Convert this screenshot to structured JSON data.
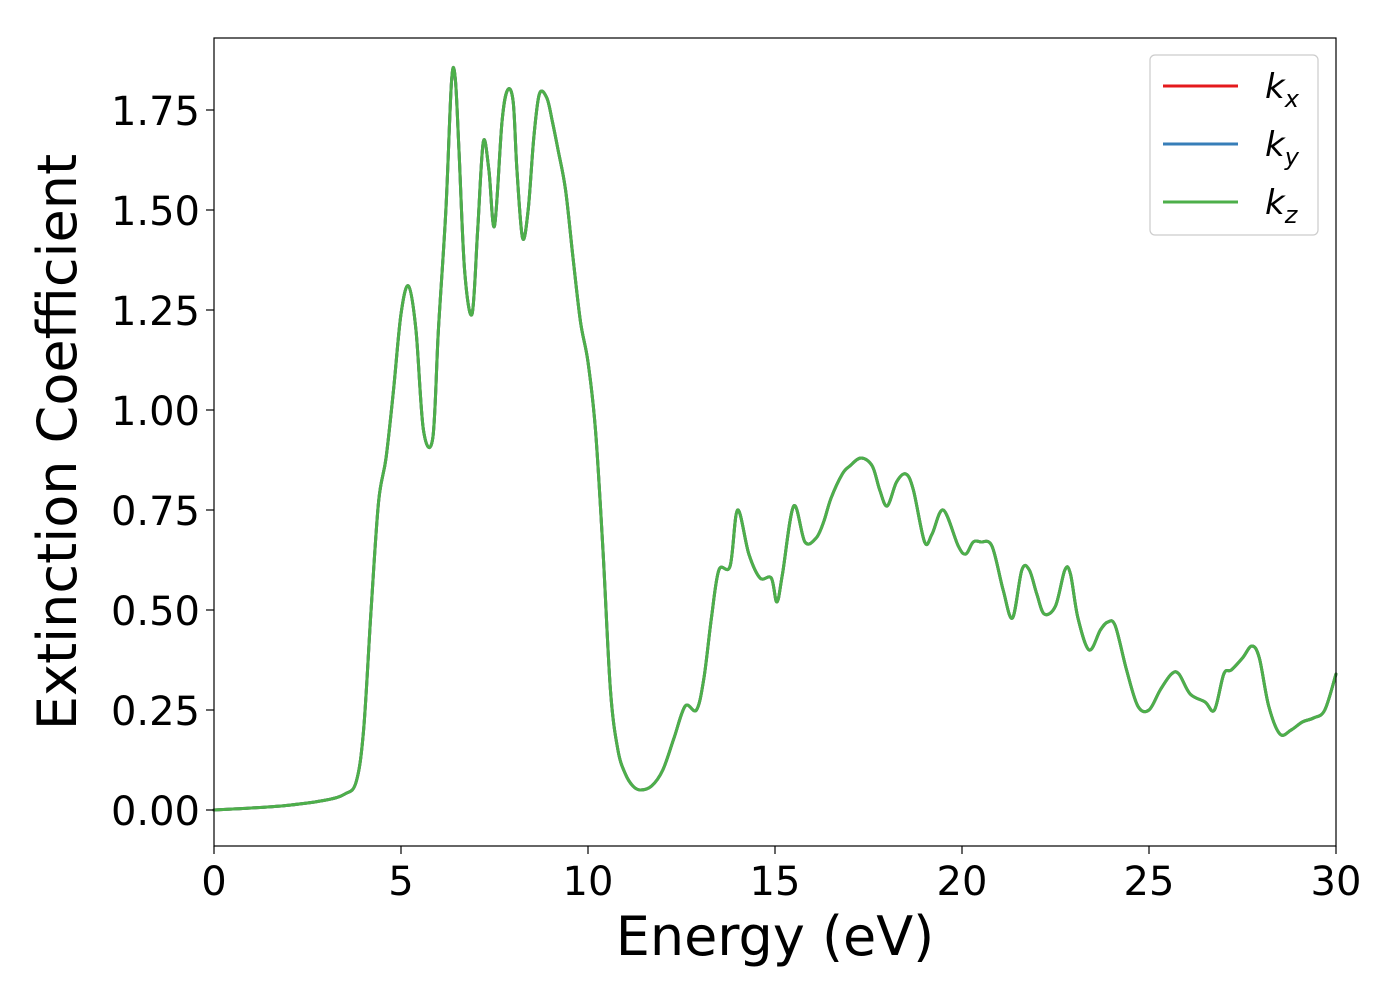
{
  "chart_data": {
    "type": "line",
    "xlabel": "Energy (eV)",
    "ylabel": "Extinction Coefficient",
    "xlim": [
      0,
      30
    ],
    "ylim": [
      -0.09,
      1.93
    ],
    "xticks": [
      0,
      5,
      10,
      15,
      20,
      25,
      30
    ],
    "xtick_labels": [
      "0",
      "5",
      "10",
      "15",
      "20",
      "25",
      "30"
    ],
    "yticks": [
      0,
      0.25,
      0.5,
      0.75,
      1.0,
      1.25,
      1.5,
      1.75
    ],
    "ytick_labels": [
      "0.00",
      "0.25",
      "0.50",
      "0.75",
      "1.00",
      "1.25",
      "1.50",
      "1.75"
    ],
    "grid": false,
    "legend_position": "top-right",
    "x": [
      0,
      1,
      2,
      3,
      3.5,
      3.8,
      4.0,
      4.2,
      4.4,
      4.6,
      4.8,
      5.0,
      5.2,
      5.4,
      5.6,
      5.85,
      6.0,
      6.2,
      6.35,
      6.45,
      6.55,
      6.7,
      6.9,
      7.05,
      7.2,
      7.35,
      7.5,
      7.7,
      7.85,
      8.0,
      8.1,
      8.25,
      8.4,
      8.55,
      8.7,
      8.9,
      9.05,
      9.2,
      9.4,
      9.6,
      9.8,
      10.0,
      10.2,
      10.4,
      10.6,
      10.8,
      11.0,
      11.2,
      11.4,
      11.7,
      12.0,
      12.3,
      12.6,
      12.9,
      13.1,
      13.3,
      13.5,
      13.8,
      14.0,
      14.3,
      14.6,
      14.9,
      15.05,
      15.2,
      15.5,
      15.8,
      16.1,
      16.3,
      16.5,
      16.8,
      17.0,
      17.3,
      17.6,
      17.8,
      18.0,
      18.25,
      18.5,
      18.7,
      19.0,
      19.2,
      19.5,
      19.9,
      20.1,
      20.3,
      20.5,
      20.8,
      21.1,
      21.35,
      21.6,
      21.8,
      22.0,
      22.2,
      22.5,
      22.75,
      22.9,
      23.1,
      23.4,
      23.7,
      23.9,
      24.1,
      24.4,
      24.7,
      25.0,
      25.3,
      25.6,
      25.8,
      26.1,
      26.5,
      26.75,
      27.0,
      27.2,
      27.5,
      27.75,
      27.95,
      28.2,
      28.5,
      28.8,
      29.1,
      29.4,
      29.7,
      30.0
    ],
    "series": [
      {
        "name": "k_x",
        "color": "#e41a1c",
        "values": [
          0.0,
          0.005,
          0.012,
          0.025,
          0.04,
          0.07,
          0.2,
          0.5,
          0.77,
          0.88,
          1.05,
          1.24,
          1.31,
          1.2,
          0.95,
          0.93,
          1.2,
          1.5,
          1.82,
          1.83,
          1.65,
          1.35,
          1.24,
          1.45,
          1.67,
          1.6,
          1.46,
          1.72,
          1.8,
          1.77,
          1.6,
          1.43,
          1.5,
          1.68,
          1.79,
          1.78,
          1.72,
          1.65,
          1.55,
          1.38,
          1.22,
          1.12,
          0.95,
          0.65,
          0.3,
          0.15,
          0.09,
          0.06,
          0.05,
          0.06,
          0.1,
          0.18,
          0.26,
          0.25,
          0.33,
          0.48,
          0.6,
          0.61,
          0.75,
          0.64,
          0.58,
          0.58,
          0.52,
          0.59,
          0.76,
          0.67,
          0.68,
          0.72,
          0.78,
          0.84,
          0.86,
          0.88,
          0.86,
          0.8,
          0.76,
          0.82,
          0.84,
          0.8,
          0.67,
          0.69,
          0.75,
          0.66,
          0.64,
          0.67,
          0.67,
          0.66,
          0.55,
          0.48,
          0.6,
          0.6,
          0.54,
          0.49,
          0.51,
          0.6,
          0.59,
          0.48,
          0.4,
          0.45,
          0.47,
          0.46,
          0.35,
          0.26,
          0.25,
          0.3,
          0.34,
          0.34,
          0.29,
          0.27,
          0.25,
          0.34,
          0.35,
          0.38,
          0.41,
          0.38,
          0.26,
          0.19,
          0.2,
          0.22,
          0.23,
          0.25,
          0.34
        ]
      },
      {
        "name": "k_y",
        "color": "#377eb8",
        "values": [
          0.0,
          0.005,
          0.012,
          0.025,
          0.04,
          0.07,
          0.2,
          0.5,
          0.77,
          0.88,
          1.05,
          1.24,
          1.31,
          1.2,
          0.95,
          0.93,
          1.2,
          1.5,
          1.82,
          1.83,
          1.65,
          1.35,
          1.24,
          1.45,
          1.67,
          1.6,
          1.46,
          1.72,
          1.8,
          1.77,
          1.6,
          1.43,
          1.5,
          1.68,
          1.79,
          1.78,
          1.72,
          1.65,
          1.55,
          1.38,
          1.22,
          1.12,
          0.95,
          0.65,
          0.3,
          0.15,
          0.09,
          0.06,
          0.05,
          0.06,
          0.1,
          0.18,
          0.26,
          0.25,
          0.33,
          0.48,
          0.6,
          0.61,
          0.75,
          0.64,
          0.58,
          0.58,
          0.52,
          0.59,
          0.76,
          0.67,
          0.68,
          0.72,
          0.78,
          0.84,
          0.86,
          0.88,
          0.86,
          0.8,
          0.76,
          0.82,
          0.84,
          0.8,
          0.67,
          0.69,
          0.75,
          0.66,
          0.64,
          0.67,
          0.67,
          0.66,
          0.55,
          0.48,
          0.6,
          0.6,
          0.54,
          0.49,
          0.51,
          0.6,
          0.59,
          0.48,
          0.4,
          0.45,
          0.47,
          0.46,
          0.35,
          0.26,
          0.25,
          0.3,
          0.34,
          0.34,
          0.29,
          0.27,
          0.25,
          0.34,
          0.35,
          0.38,
          0.41,
          0.38,
          0.26,
          0.19,
          0.2,
          0.22,
          0.23,
          0.25,
          0.34
        ]
      },
      {
        "name": "k_z",
        "color": "#4daf4a",
        "values": [
          0.0,
          0.005,
          0.012,
          0.025,
          0.04,
          0.07,
          0.2,
          0.5,
          0.77,
          0.88,
          1.05,
          1.24,
          1.31,
          1.2,
          0.95,
          0.93,
          1.2,
          1.5,
          1.82,
          1.83,
          1.65,
          1.35,
          1.24,
          1.45,
          1.67,
          1.6,
          1.46,
          1.72,
          1.8,
          1.77,
          1.6,
          1.43,
          1.5,
          1.68,
          1.79,
          1.78,
          1.72,
          1.65,
          1.55,
          1.38,
          1.22,
          1.12,
          0.95,
          0.65,
          0.3,
          0.15,
          0.09,
          0.06,
          0.05,
          0.06,
          0.1,
          0.18,
          0.26,
          0.25,
          0.33,
          0.48,
          0.6,
          0.61,
          0.75,
          0.64,
          0.58,
          0.58,
          0.52,
          0.59,
          0.76,
          0.67,
          0.68,
          0.72,
          0.78,
          0.84,
          0.86,
          0.88,
          0.86,
          0.8,
          0.76,
          0.82,
          0.84,
          0.8,
          0.67,
          0.69,
          0.75,
          0.66,
          0.64,
          0.67,
          0.67,
          0.66,
          0.55,
          0.48,
          0.6,
          0.6,
          0.54,
          0.49,
          0.51,
          0.6,
          0.59,
          0.48,
          0.4,
          0.45,
          0.47,
          0.46,
          0.35,
          0.26,
          0.25,
          0.3,
          0.34,
          0.34,
          0.29,
          0.27,
          0.25,
          0.34,
          0.35,
          0.38,
          0.41,
          0.38,
          0.26,
          0.19,
          0.2,
          0.22,
          0.23,
          0.25,
          0.34
        ]
      }
    ],
    "legend": [
      {
        "base": "k",
        "sub": "x",
        "color": "#e41a1c"
      },
      {
        "base": "k",
        "sub": "y",
        "color": "#377eb8"
      },
      {
        "base": "k",
        "sub": "z",
        "color": "#4daf4a"
      }
    ]
  }
}
